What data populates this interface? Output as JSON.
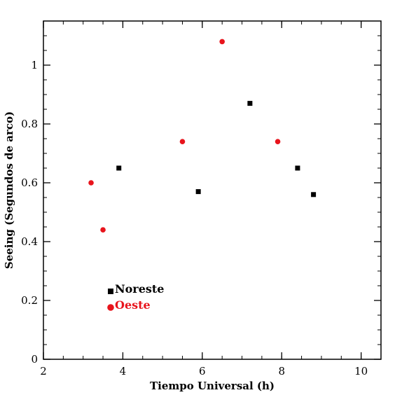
{
  "chart_data": {
    "type": "scatter",
    "xlabel": "Tiempo Universal (h)",
    "ylabel": "Seeing (Segundos de arco)",
    "xlim": [
      2,
      10.5
    ],
    "ylim": [
      0,
      1.15
    ],
    "x_ticks": [
      2,
      4,
      6,
      8,
      10
    ],
    "y_ticks": [
      0,
      0.2,
      0.4,
      0.6,
      0.8,
      1
    ],
    "x_tick_labels": [
      "2",
      "4",
      "6",
      "8",
      "10"
    ],
    "y_tick_labels": [
      "0",
      "0.2",
      "0.4",
      "0.6",
      "0.8",
      "1"
    ],
    "x_minor_step": 0.5,
    "y_minor_step": 0.05,
    "grid": false,
    "legend_position": "bottom-left",
    "series": [
      {
        "name": "Noreste",
        "marker": "square",
        "color": "#000000",
        "points": [
          {
            "x": 3.9,
            "y": 0.65
          },
          {
            "x": 5.9,
            "y": 0.57
          },
          {
            "x": 7.2,
            "y": 0.87
          },
          {
            "x": 8.4,
            "y": 0.65
          },
          {
            "x": 8.8,
            "y": 0.56
          }
        ]
      },
      {
        "name": "Oeste",
        "marker": "circle",
        "color": "#e8141c",
        "points": [
          {
            "x": 3.2,
            "y": 0.6
          },
          {
            "x": 3.5,
            "y": 0.44
          },
          {
            "x": 5.5,
            "y": 0.74
          },
          {
            "x": 6.5,
            "y": 1.08
          },
          {
            "x": 7.9,
            "y": 0.74
          }
        ]
      }
    ]
  }
}
